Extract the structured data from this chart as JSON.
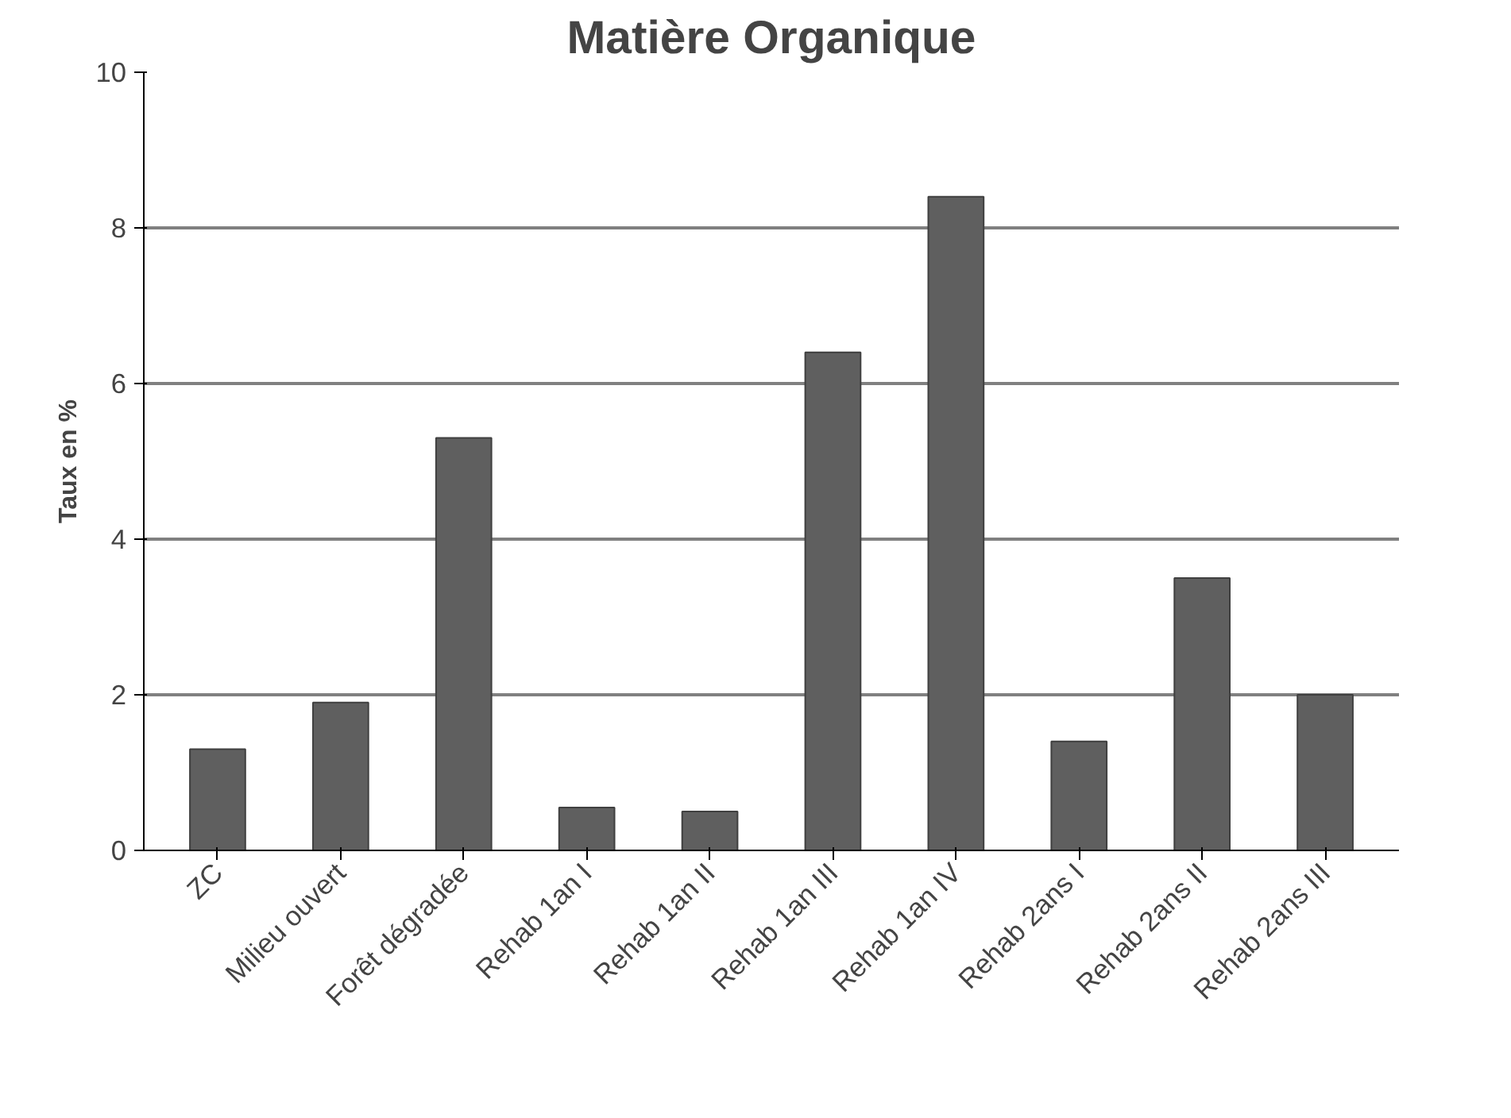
{
  "chart_data": {
    "type": "bar",
    "title": "Matière Organique",
    "ylabel": "Taux en %",
    "categories": [
      "ZC",
      "Milieu ouvert",
      "Forêt dégradée",
      "Rehab 1an I",
      "Rehab 1an II",
      "Rehab 1an III",
      "Rehab 1an IV",
      "Rehab 2ans I",
      "Rehab 2ans II",
      "Rehab 2ans III"
    ],
    "values": [
      1.3,
      1.9,
      5.3,
      0.55,
      0.5,
      6.4,
      8.4,
      1.4,
      3.5,
      2.0
    ],
    "color": "#5f5f5f",
    "ylim": [
      0,
      10
    ],
    "yticks": [
      0,
      2,
      4,
      6,
      8,
      10
    ],
    "grid": "y"
  }
}
